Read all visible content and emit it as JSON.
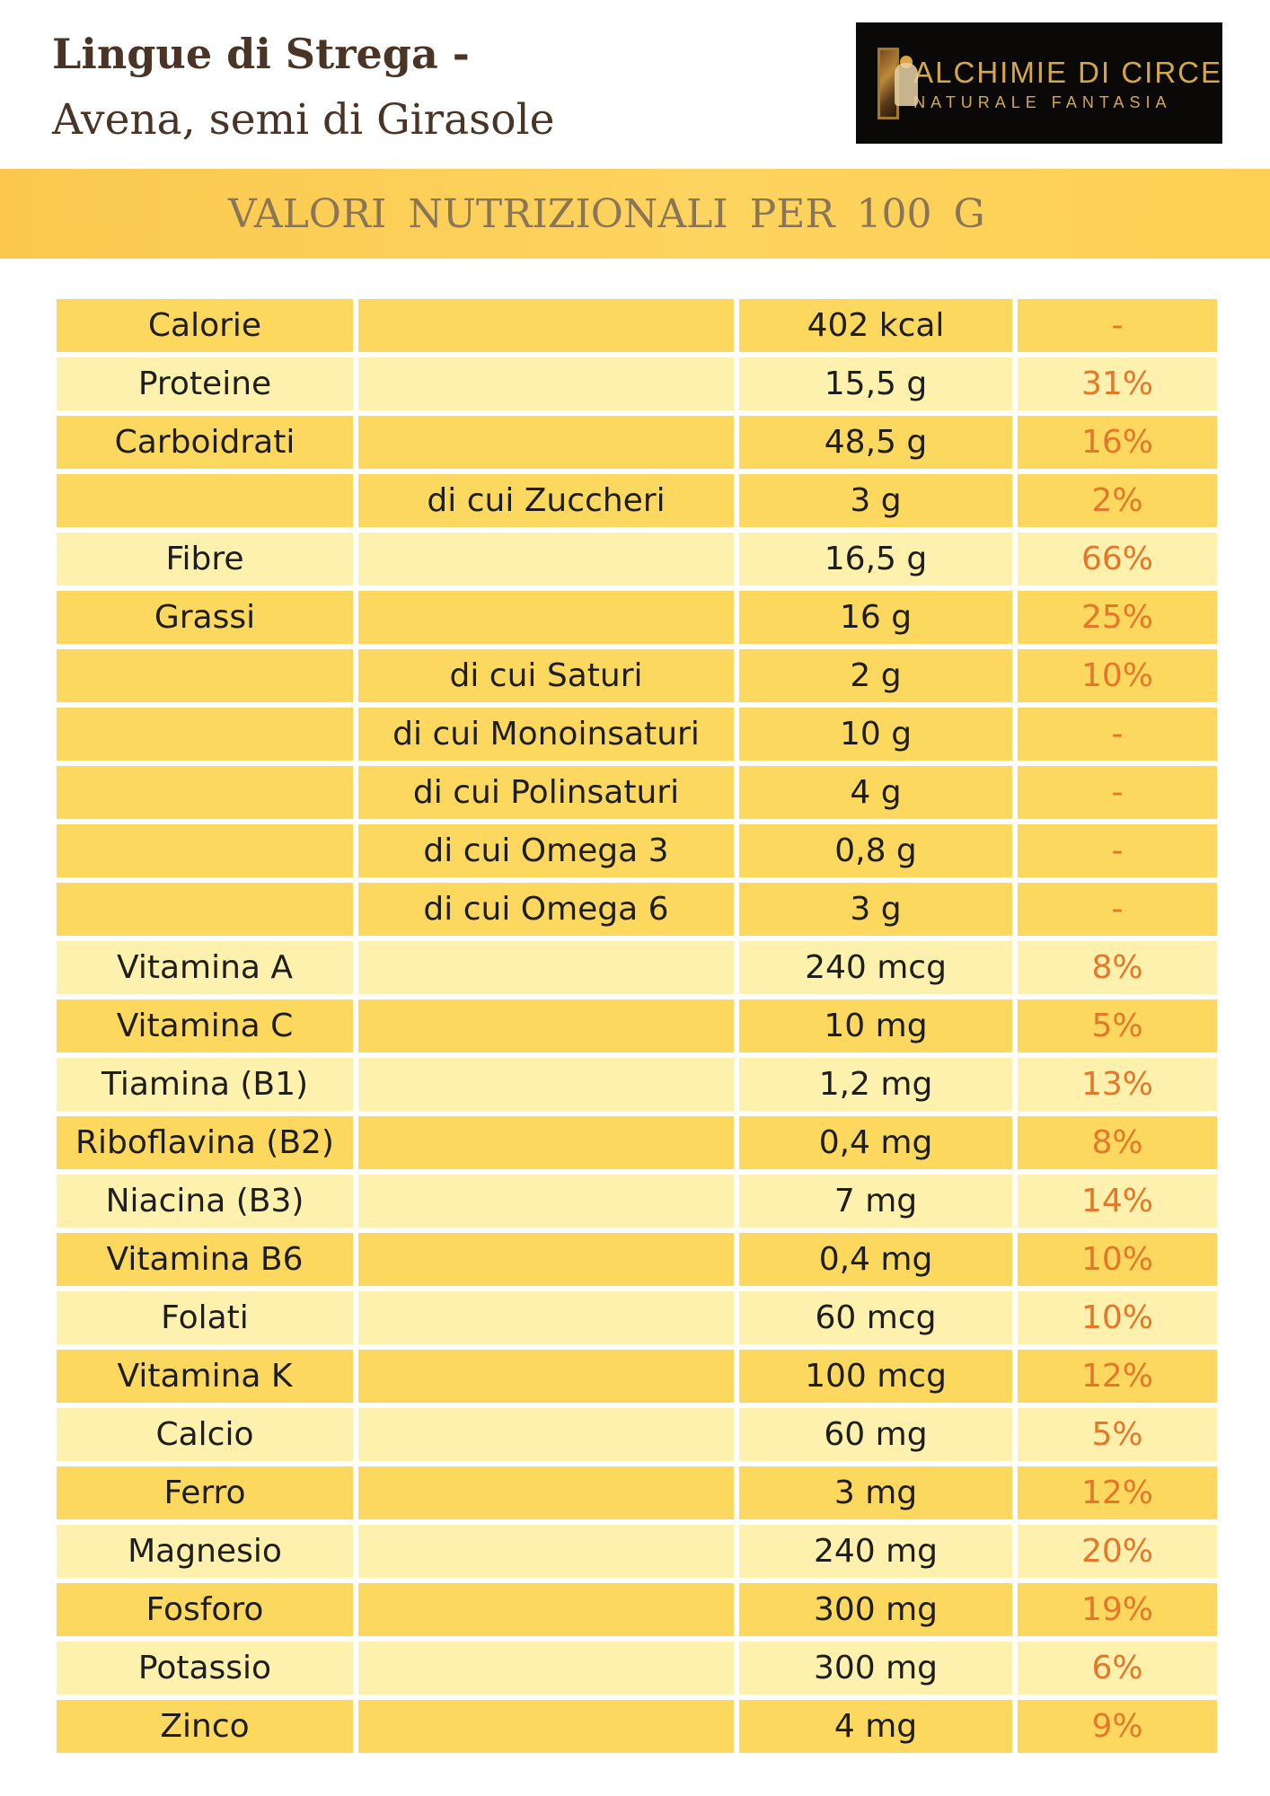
{
  "header": {
    "title": "Lingue di Strega -",
    "subtitle": "Avena, semi di Girasole"
  },
  "logo": {
    "name": "ALCHIMIE DI CIRCE",
    "tagline": "NATURALE FANTASIA",
    "icon": "circe-painting-icon"
  },
  "banner": {
    "text": "VALORI  NUTRIZIONALI  PER  100 G"
  },
  "colors": {
    "row_dark": "#fcd85f",
    "row_light": "#fdf1ad",
    "percent_text": "#e4782a",
    "title_text": "#4a3426",
    "banner": "#fdd45f"
  },
  "nutrition": [
    {
      "name": "Calorie",
      "sub": "",
      "value": "402 kcal",
      "percent": "-",
      "shade": "dark"
    },
    {
      "name": "Proteine",
      "sub": "",
      "value": "15,5 g",
      "percent": "31%",
      "shade": "light"
    },
    {
      "name": "Carboidrati",
      "sub": "",
      "value": "48,5 g",
      "percent": "16%",
      "shade": "dark"
    },
    {
      "name": "",
      "sub": "di cui Zuccheri",
      "value": "3 g",
      "percent": "2%",
      "shade": "dark"
    },
    {
      "name": "Fibre",
      "sub": "",
      "value": "16,5 g",
      "percent": "66%",
      "shade": "light"
    },
    {
      "name": "Grassi",
      "sub": "",
      "value": "16 g",
      "percent": "25%",
      "shade": "dark"
    },
    {
      "name": "",
      "sub": "di cui Saturi",
      "value": "2 g",
      "percent": "10%",
      "shade": "dark"
    },
    {
      "name": "",
      "sub": "di cui Monoinsaturi",
      "value": "10 g",
      "percent": "-",
      "shade": "dark"
    },
    {
      "name": "",
      "sub": "di cui Polinsaturi",
      "value": "4 g",
      "percent": "-",
      "shade": "dark"
    },
    {
      "name": "",
      "sub": "di cui Omega 3",
      "value": "0,8 g",
      "percent": "-",
      "shade": "dark"
    },
    {
      "name": "",
      "sub": "di cui Omega 6",
      "value": "3 g",
      "percent": "-",
      "shade": "dark"
    },
    {
      "name": "Vitamina A",
      "sub": "",
      "value": "240 mcg",
      "percent": "8%",
      "shade": "light"
    },
    {
      "name": "Vitamina C",
      "sub": "",
      "value": "10 mg",
      "percent": "5%",
      "shade": "dark"
    },
    {
      "name": "Tiamina (B1)",
      "sub": "",
      "value": "1,2 mg",
      "percent": "13%",
      "shade": "light"
    },
    {
      "name": "Riboflavina (B2)",
      "sub": "",
      "value": "0,4 mg",
      "percent": "8%",
      "shade": "dark"
    },
    {
      "name": "Niacina (B3)",
      "sub": "",
      "value": "7 mg",
      "percent": "14%",
      "shade": "light"
    },
    {
      "name": "Vitamina B6",
      "sub": "",
      "value": "0,4 mg",
      "percent": "10%",
      "shade": "dark"
    },
    {
      "name": "Folati",
      "sub": "",
      "value": "60 mcg",
      "percent": "10%",
      "shade": "light"
    },
    {
      "name": "Vitamina K",
      "sub": "",
      "value": "100 mcg",
      "percent": "12%",
      "shade": "dark"
    },
    {
      "name": "Calcio",
      "sub": "",
      "value": "60 mg",
      "percent": "5%",
      "shade": "light"
    },
    {
      "name": "Ferro",
      "sub": "",
      "value": "3 mg",
      "percent": "12%",
      "shade": "dark"
    },
    {
      "name": "Magnesio",
      "sub": "",
      "value": "240 mg",
      "percent": "20%",
      "shade": "light"
    },
    {
      "name": "Fosforo",
      "sub": "",
      "value": "300 mg",
      "percent": "19%",
      "shade": "dark"
    },
    {
      "name": "Potassio",
      "sub": "",
      "value": "300 mg",
      "percent": "6%",
      "shade": "light"
    },
    {
      "name": "Zinco",
      "sub": "",
      "value": "4 mg",
      "percent": "9%",
      "shade": "dark"
    }
  ]
}
